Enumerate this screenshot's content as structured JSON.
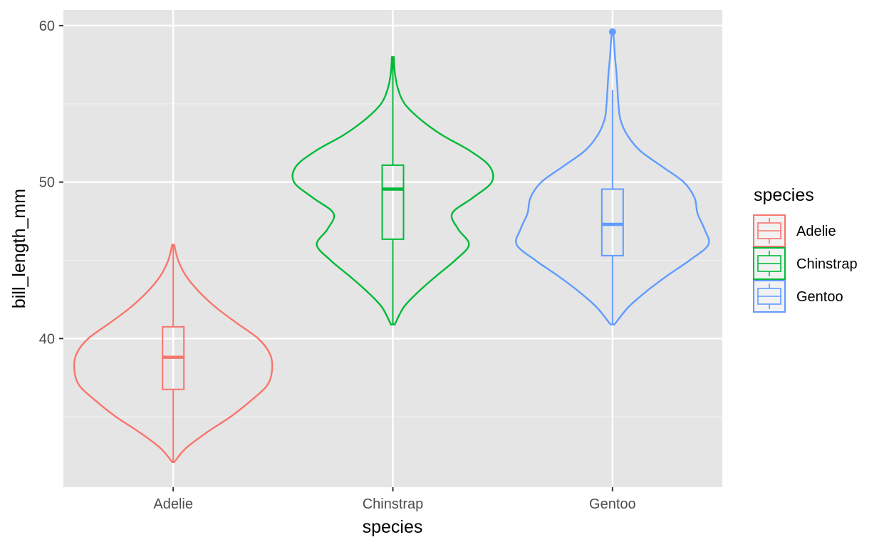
{
  "chart_data": {
    "type": "violin",
    "xlabel": "species",
    "ylabel": "bill_length_mm",
    "categories": [
      "Adelie",
      "Chinstrap",
      "Gentoo"
    ],
    "ylim": [
      30.5,
      61
    ],
    "yticks": [
      40,
      50,
      60
    ],
    "y_minor_gridlines": [
      35,
      45,
      55
    ],
    "grid": true,
    "legend": {
      "title": "species",
      "position": "right"
    },
    "colors": {
      "Adelie": "#F8766D",
      "Chinstrap": "#00BA38",
      "Gentoo": "#619CFF"
    },
    "panel_background": "#E5E5E5",
    "series": [
      {
        "name": "Adelie",
        "violin": {
          "y": [
            32.1,
            33.0,
            34.0,
            35.0,
            36.0,
            37.0,
            38.0,
            39.0,
            40.0,
            41.0,
            42.0,
            43.0,
            44.0,
            45.0,
            46.0
          ],
          "halfwidth": [
            0.01,
            0.13,
            0.34,
            0.58,
            0.78,
            0.95,
            1.0,
            0.98,
            0.86,
            0.64,
            0.43,
            0.26,
            0.13,
            0.05,
            0.01
          ]
        },
        "box": {
          "lower_whisker": 32.1,
          "q1": 36.75,
          "median": 38.8,
          "q3": 40.75,
          "upper_whisker": 46.0
        },
        "outliers": []
      },
      {
        "name": "Chinstrap",
        "violin": {
          "y": [
            40.9,
            42.0,
            43.0,
            44.0,
            45.0,
            46.0,
            47.0,
            48.0,
            49.0,
            50.0,
            51.0,
            52.0,
            53.0,
            54.0,
            55.0,
            56.0,
            57.0,
            58.0
          ],
          "halfwidth": [
            0.02,
            0.11,
            0.26,
            0.44,
            0.63,
            0.77,
            0.66,
            0.6,
            0.81,
            1.0,
            0.98,
            0.78,
            0.5,
            0.28,
            0.12,
            0.05,
            0.02,
            0.01
          ]
        },
        "box": {
          "lower_whisker": 40.9,
          "q1": 46.35,
          "median": 49.55,
          "q3": 51.08,
          "upper_whisker": 58.0
        },
        "outliers": []
      },
      {
        "name": "Gentoo",
        "violin": {
          "y": [
            40.9,
            42.0,
            43.0,
            44.0,
            45.0,
            46.0,
            47.0,
            48.0,
            49.0,
            50.0,
            51.0,
            52.0,
            53.0,
            54.0,
            55.0,
            56.0,
            57.0,
            58.0,
            59.0,
            59.6
          ],
          "halfwidth": [
            0.02,
            0.16,
            0.34,
            0.55,
            0.78,
            0.97,
            0.93,
            0.86,
            0.83,
            0.72,
            0.5,
            0.28,
            0.15,
            0.08,
            0.06,
            0.05,
            0.04,
            0.025,
            0.015,
            0.005
          ]
        },
        "box": {
          "lower_whisker": 40.9,
          "q1": 45.3,
          "median": 47.3,
          "q3": 49.55,
          "upper_whisker": 55.9
        },
        "outliers": [
          59.6
        ]
      }
    ]
  }
}
